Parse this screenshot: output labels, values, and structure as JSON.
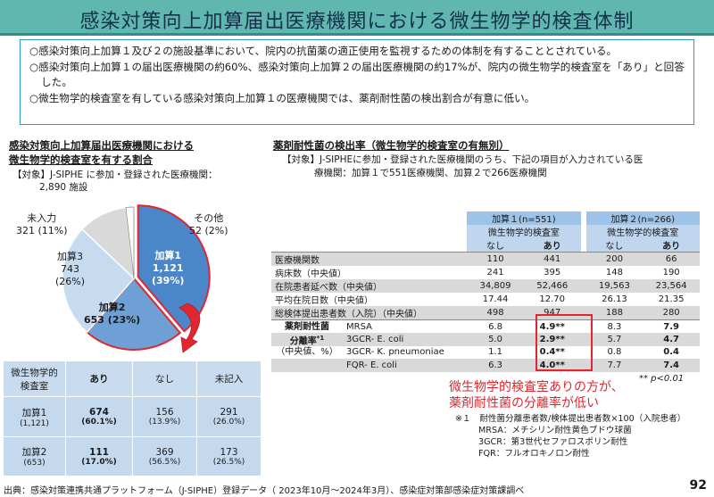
{
  "header": {
    "title": "感染対策向上加算届出医療機関における微生物学的検査体制"
  },
  "summary": [
    "○感染対策向上加算１及び２の施設基準において、院内の抗菌薬の適正使用を監視するための体制を有することとされている。",
    "○感染対策向上加算１の届出医療機関の約60%、感染対策向上加算２の届出医療機関の約17%が、院内の微生物学的検査室を「あり」と回答した。",
    "○微生物学的検査室を有している感染対策向上加算１の医療機関では、薬剤耐性菌の検出割合が有意に低い。"
  ],
  "left": {
    "heading_line1": "感染対策向上加算届出医療機関における",
    "heading_line2": "微生物学的検査室を有する割合",
    "target_line1": "【対象】J-SIPHE に参加・登録された医療機関：",
    "target_line2": "2,890 施設"
  },
  "pie": {
    "slices": [
      {
        "name": "加算1",
        "count": "1,121",
        "pct": "(39%)",
        "value": 1121,
        "color": "#4a86c8"
      },
      {
        "name": "加算2",
        "count": "653",
        "pct": "(23%)",
        "value": 653,
        "color": "#6ea0d6"
      },
      {
        "name": "加算3",
        "count": "743",
        "pct": "(26%)",
        "value": 743,
        "color": "#c7dbf0"
      },
      {
        "name": "未入力",
        "count": "321",
        "pct": "(11%)",
        "value": 321,
        "color": "#d9d9d9"
      },
      {
        "name": "その他",
        "count": "52",
        "pct": "(2%)",
        "value": 52,
        "color": "#ffffff"
      }
    ],
    "label_kasan1_a": "加算1",
    "label_kasan1_b": "1,121",
    "label_kasan1_c": "(39%)",
    "label_kasan2_a": "加算2",
    "label_kasan2_b": "653 (23%)",
    "label_kasan3_a": "加算3",
    "label_kasan3_b": "743",
    "label_kasan3_c": "(26%)",
    "label_mi_a": "未入力",
    "label_mi_b": "321 (11%)",
    "label_other_a": "その他",
    "label_other_b": "52 (2%)"
  },
  "left_table": {
    "headers": [
      "微生物学的\n検査室",
      "あり",
      "なし",
      "未記入"
    ],
    "rows": [
      {
        "name": "加算1",
        "n": "(1,121)",
        "ari": "674",
        "ari_pct": "(60.1%)",
        "nashi": "156",
        "nashi_pct": "(13.9%)",
        "mi": "291",
        "mi_pct": "(26.0%)"
      },
      {
        "name": "加算2",
        "n": "(653)",
        "ari": "111",
        "ari_pct": "(17.0%)",
        "nashi": "369",
        "nashi_pct": "(56.5%)",
        "mi": "173",
        "mi_pct": "(26.5%)"
      }
    ]
  },
  "right": {
    "heading": "薬剤耐性菌の検出率（微生物学的検査室の有無別）",
    "target_line1": "【対象】J-SIPHEに参加・登録された医療機関のうち、下記の項目が入力されている医",
    "target_line2": "療機関：加算１で551医療機関、加算２で266医療機関"
  },
  "right_table": {
    "group1": "加算１(n=551)",
    "group2": "加算２(n=266)",
    "sub": "微生物学的検査室",
    "nashi": "なし",
    "ari": "あり",
    "rows": [
      {
        "label": "医療機関数",
        "v": [
          "110",
          "441",
          "200",
          "66"
        ]
      },
      {
        "label": "病床数（中央値）",
        "v": [
          "241",
          "395",
          "148",
          "190"
        ]
      },
      {
        "label": "在院患者延べ数（中央値）",
        "v": [
          "34,809",
          "52,466",
          "19,563",
          "23,564"
        ]
      },
      {
        "label": "平均在院日数（中央値）",
        "v": [
          "17.44",
          "12.70",
          "26.13",
          "21.35"
        ]
      },
      {
        "label": "総検体提出患者数（入院）（中央値）",
        "v": [
          "498",
          "947",
          "188",
          "280"
        ]
      }
    ],
    "abr_label_1": "薬剤耐性菌",
    "abr_label_2": "分離率",
    "abr_label_sup": "*1",
    "abr_label_3": "（中央値、%）",
    "abr_rows": [
      {
        "label": "MRSA",
        "v": [
          "6.8",
          "4.9**",
          "8.3",
          "7.9"
        ]
      },
      {
        "label": "3GCR- E. coli",
        "v": [
          "5.0",
          "2.9**",
          "5.7",
          "4.7"
        ]
      },
      {
        "label": "3GCR- K. pneumoniae",
        "v": [
          "1.1",
          "0.4**",
          "0.8",
          "0.4"
        ]
      },
      {
        "label": "FQR- E. coli",
        "v": [
          "6.3",
          "4.0**",
          "7.7",
          "7.4"
        ]
      }
    ]
  },
  "callout": {
    "line1": "微生物学的検査室ありの方が、",
    "line2": "薬剤耐性菌の分離率が低い"
  },
  "pnote": "** p<0.01",
  "footnotes": [
    "※１　耐性菌分離患者数/検体提出患者数×100（入院患者）",
    "MRSA：メチシリン耐性黄色ブドウ球菌",
    "3GCR：第3世代セファロスポリン耐性",
    "FQR：フルオロキノロン耐性"
  ],
  "footer": "出典：感染対策連携共通プラットフォーム（J-SIPHE）登録データ（ 2023年10月～2024年3月）、感染症対策部感染症対策課調べ",
  "page_number": "92"
}
